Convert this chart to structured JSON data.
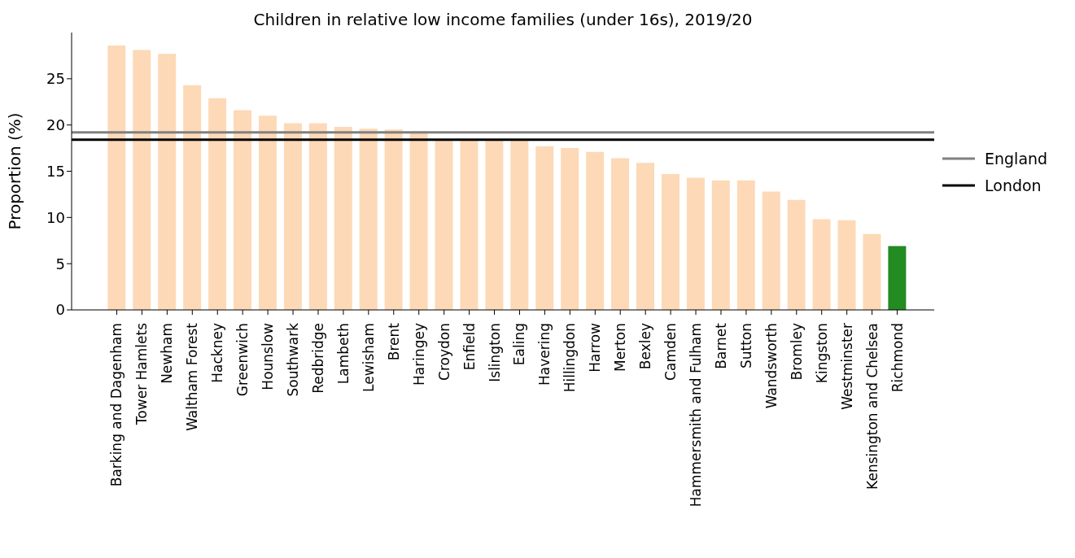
{
  "chart_data": {
    "type": "bar",
    "title": "Children in relative low income families (under 16s), 2019/20",
    "ylabel": "Proportion (%)",
    "categories": [
      "Barking and Dagenham",
      "Tower Hamlets",
      "Newham",
      "Waltham Forest",
      "Hackney",
      "Greenwich",
      "Hounslow",
      "Southwark",
      "Redbridge",
      "Lambeth",
      "Lewisham",
      "Brent",
      "Haringey",
      "Croydon",
      "Enfield",
      "Islington",
      "Ealing",
      "Havering",
      "Hillingdon",
      "Harrow",
      "Merton",
      "Bexley",
      "Camden",
      "Hammersmith and Fulham",
      "Barnet",
      "Sutton",
      "Wandsworth",
      "Bromley",
      "Kingston",
      "Westminster",
      "Kensington and Chelsea",
      "Richmond"
    ],
    "values": [
      28.6,
      28.1,
      27.7,
      24.3,
      22.9,
      21.6,
      21.0,
      20.2,
      20.2,
      19.8,
      19.6,
      19.5,
      19.3,
      18.4,
      18.4,
      18.4,
      18.3,
      17.7,
      17.5,
      17.1,
      16.4,
      15.9,
      14.7,
      14.3,
      14.0,
      14.0,
      12.8,
      11.9,
      9.8,
      9.7,
      8.2,
      6.9
    ],
    "colors": [
      "#fdd9b7",
      "#fdd9b7",
      "#fdd9b7",
      "#fdd9b7",
      "#fdd9b7",
      "#fdd9b7",
      "#fdd9b7",
      "#fdd9b7",
      "#fdd9b7",
      "#fdd9b7",
      "#fdd9b7",
      "#fdd9b7",
      "#fdd9b7",
      "#fdd9b7",
      "#fdd9b7",
      "#fdd9b7",
      "#fdd9b7",
      "#fdd9b7",
      "#fdd9b7",
      "#fdd9b7",
      "#fdd9b7",
      "#fdd9b7",
      "#fdd9b7",
      "#fdd9b7",
      "#fdd9b7",
      "#fdd9b7",
      "#fdd9b7",
      "#fdd9b7",
      "#fdd9b7",
      "#fdd9b7",
      "#fdd9b7",
      "#228b22"
    ],
    "ylim": [
      0,
      30
    ],
    "yticks": [
      0,
      5,
      10,
      15,
      20,
      25
    ],
    "grid": false,
    "legend": "right",
    "ref_lines": [
      {
        "axis": "y",
        "value": 19.2,
        "label": "England",
        "color": "#808080"
      },
      {
        "axis": "y",
        "value": 18.4,
        "label": "London",
        "color": "#000000"
      }
    ]
  }
}
